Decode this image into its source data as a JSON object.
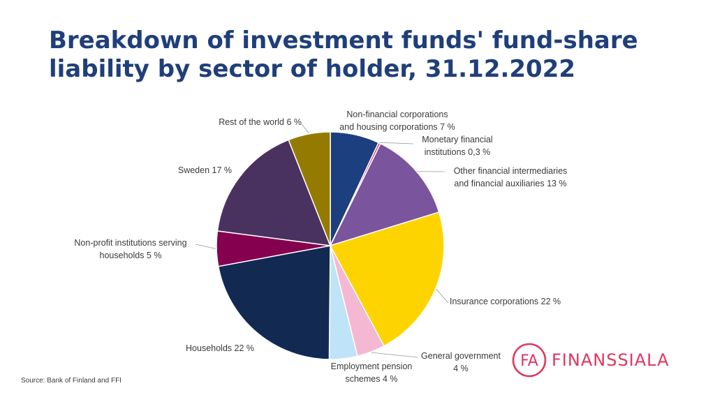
{
  "title": {
    "line1": "Breakdown of investment funds' fund-share",
    "line2": "liability by sector of holder, 31.12.2022"
  },
  "source": "Source: Bank of Finland and FFI",
  "logo": {
    "text": "FINANSSIALA",
    "mark_text": "FA",
    "color": "#e0365f"
  },
  "chart_data": {
    "type": "pie",
    "title": "Breakdown of investment funds' fund-share liability by sector of holder, 31.12.2022",
    "unit": "%",
    "slices": [
      {
        "label": "Non-financial corporations and housing corporations",
        "value": 7,
        "color": "#1c3f7f",
        "label_lines": [
          "Non-financial corporations",
          "and housing corporations 7 %"
        ]
      },
      {
        "label": "Monetary financial institutions",
        "value": 0.3,
        "color": "#d9336a",
        "label_lines": [
          "Monetary financial",
          "institutions 0,3 %"
        ]
      },
      {
        "label": "Other financial intermediaries and financial auxiliaries",
        "value": 13,
        "color": "#7b549e",
        "label_lines": [
          "Other financial intermediaries",
          "and financial auxiliaries 13 %"
        ]
      },
      {
        "label": "Insurance corporations",
        "value": 22,
        "color": "#fed400",
        "label_lines": [
          "Insurance corporations 22 %"
        ]
      },
      {
        "label": "General government",
        "value": 4,
        "color": "#f5b8d2",
        "label_lines": [
          "General government",
          "4 %"
        ]
      },
      {
        "label": "Employment pension schemes",
        "value": 4,
        "color": "#bfe3f7",
        "label_lines": [
          "Employment pension",
          "schemes 4 %"
        ]
      },
      {
        "label": "Households",
        "value": 22,
        "color": "#122a52",
        "label_lines": [
          "Households 22 %"
        ]
      },
      {
        "label": "Non-profit institutions serving households",
        "value": 5,
        "color": "#860050",
        "label_lines": [
          "Non-profit institutions serving",
          "households 5 %"
        ]
      },
      {
        "label": "Sweden",
        "value": 17,
        "color": "#4a3260",
        "label_lines": [
          "Sweden 17 %"
        ]
      },
      {
        "label": "Rest of the world",
        "value": 6,
        "color": "#947b00",
        "label_lines": [
          "Rest of the world  6 %"
        ]
      }
    ]
  }
}
